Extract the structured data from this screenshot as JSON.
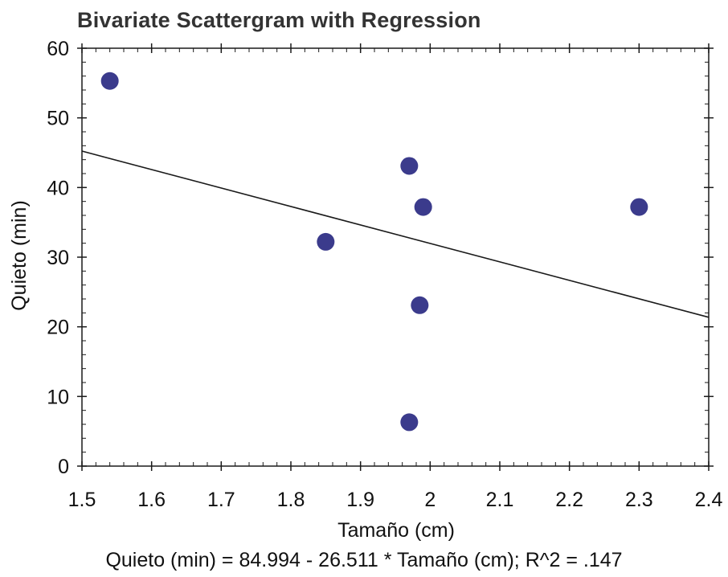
{
  "chart_data": {
    "type": "scatter",
    "title": "Bivariate Scattergram with Regression",
    "xlabel": "Tamaño (cm)",
    "ylabel": "Quieto (min)",
    "xlim": [
      1.5,
      2.4
    ],
    "ylim": [
      0,
      60
    ],
    "x_ticks": [
      "1.5",
      "1.6",
      "1.7",
      "1.8",
      "1.9",
      "2",
      "2.1",
      "2.2",
      "2.3",
      "2.4"
    ],
    "y_ticks": [
      "0",
      "10",
      "20",
      "30",
      "40",
      "50",
      "60"
    ],
    "x_minor_step": 0.02,
    "y_minor_step": 2,
    "grid": false,
    "points": [
      {
        "x": 1.54,
        "y": 55.3
      },
      {
        "x": 1.85,
        "y": 32.2
      },
      {
        "x": 1.97,
        "y": 43.1
      },
      {
        "x": 1.99,
        "y": 37.2
      },
      {
        "x": 1.985,
        "y": 23.1
      },
      {
        "x": 1.97,
        "y": 6.3
      },
      {
        "x": 2.3,
        "y": 37.2
      }
    ],
    "regression": {
      "intercept": 84.994,
      "slope": -26.511,
      "r2": 0.147
    },
    "equation": "Quieto (min) = 84.994 - 26.511 * Tamaño (cm); R^2 = .147",
    "colors": {
      "marker": "#3b3b8c",
      "line": "#1a1a1a",
      "axis": "#1a1a1a"
    }
  }
}
